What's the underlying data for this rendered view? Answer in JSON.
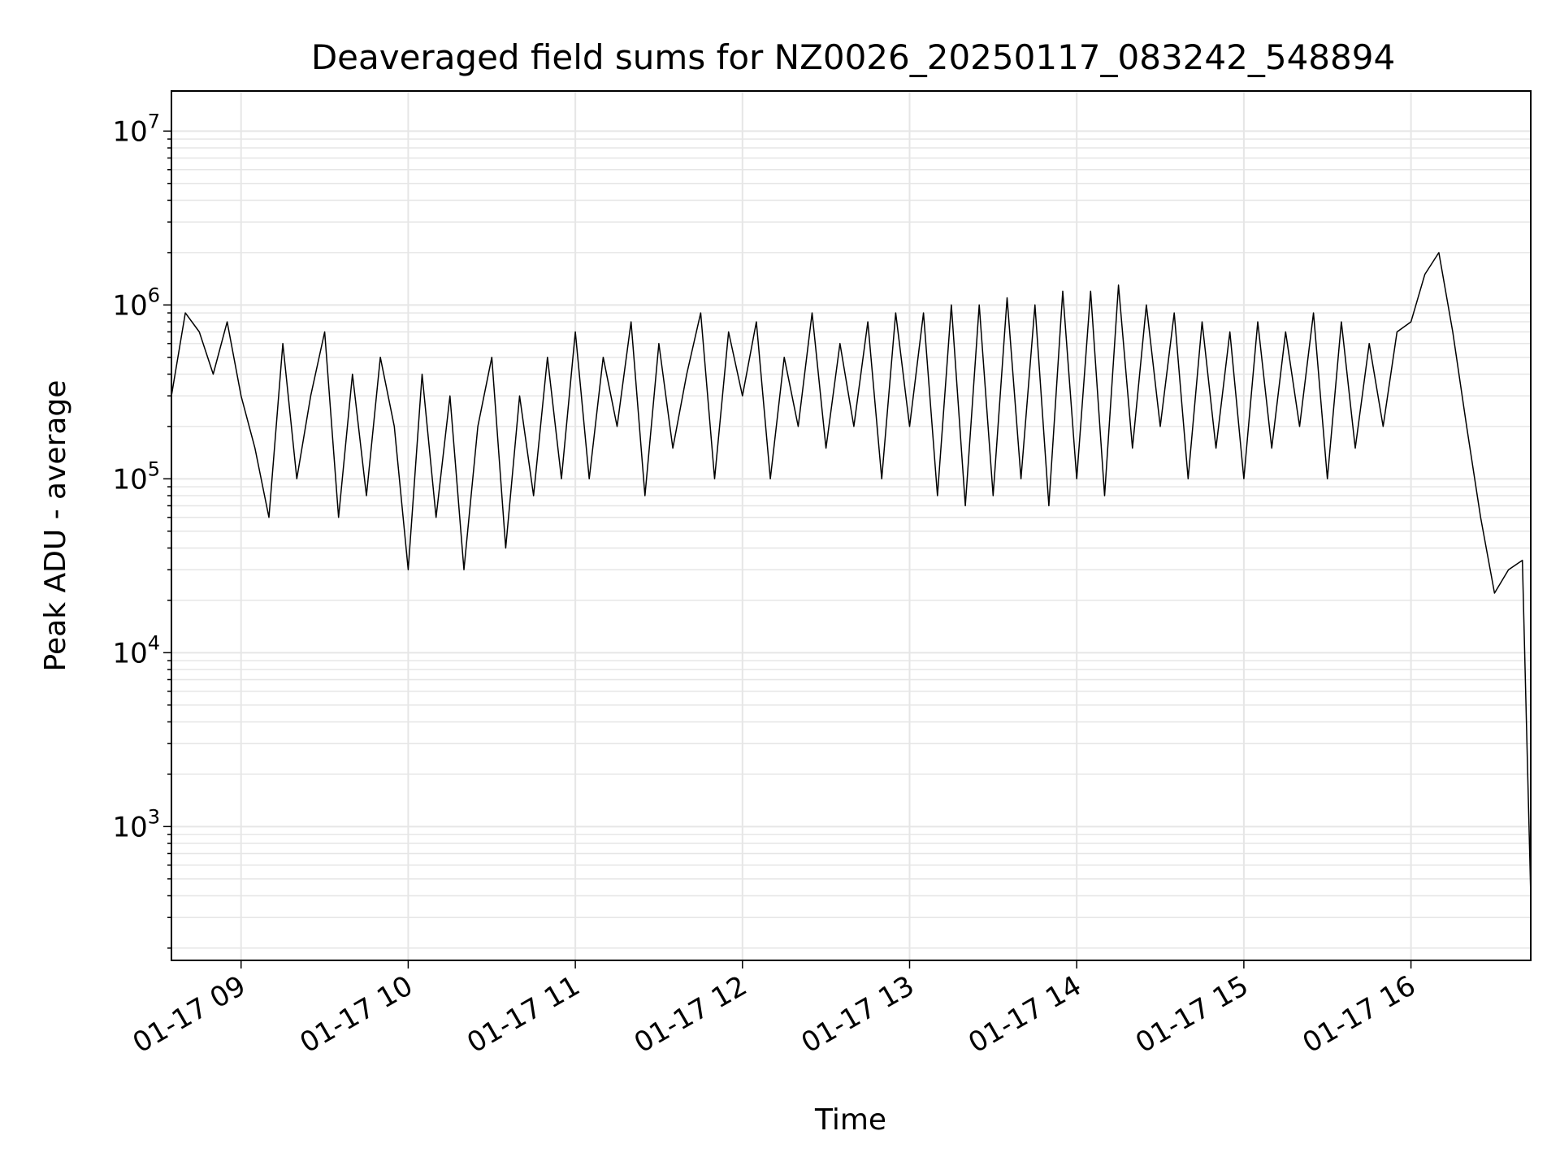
{
  "chart_data": {
    "type": "line",
    "title": "Deaveraged field sums for NZ0026_20250117_083242_548894",
    "xlabel": "Time",
    "ylabel": "Peak ADU - average",
    "yscale": "log",
    "xlim": [
      "2025-01-17 08:35",
      "2025-01-17 16:43"
    ],
    "ylim": [
      170,
      17000000
    ],
    "grid": true,
    "line_color": "#000000",
    "grid_color": "#e6e6e6",
    "x_ticks": [
      {
        "label": "01-17 09",
        "time": "2025-01-17 09:00"
      },
      {
        "label": "01-17 10",
        "time": "2025-01-17 10:00"
      },
      {
        "label": "01-17 11",
        "time": "2025-01-17 11:00"
      },
      {
        "label": "01-17 12",
        "time": "2025-01-17 12:00"
      },
      {
        "label": "01-17 13",
        "time": "2025-01-17 13:00"
      },
      {
        "label": "01-17 14",
        "time": "2025-01-17 14:00"
      },
      {
        "label": "01-17 15",
        "time": "2025-01-17 15:00"
      },
      {
        "label": "01-17 16",
        "time": "2025-01-17 16:00"
      }
    ],
    "y_ticks": [
      {
        "value": 1000,
        "base": "10",
        "exp": "3"
      },
      {
        "value": 10000,
        "base": "10",
        "exp": "4"
      },
      {
        "value": 100000,
        "base": "10",
        "exp": "5"
      },
      {
        "value": 1000000,
        "base": "10",
        "exp": "6"
      },
      {
        "value": 10000000,
        "base": "10",
        "exp": "7"
      }
    ],
    "series": [
      {
        "x": [
          "2025-01-17 08:35",
          "2025-01-17 08:40",
          "2025-01-17 08:45",
          "2025-01-17 08:50",
          "2025-01-17 08:55",
          "2025-01-17 09:00",
          "2025-01-17 09:05",
          "2025-01-17 09:10",
          "2025-01-17 09:15",
          "2025-01-17 09:20",
          "2025-01-17 09:25",
          "2025-01-17 09:30",
          "2025-01-17 09:35",
          "2025-01-17 09:40",
          "2025-01-17 09:45",
          "2025-01-17 09:50",
          "2025-01-17 09:55",
          "2025-01-17 10:00",
          "2025-01-17 10:05",
          "2025-01-17 10:10",
          "2025-01-17 10:15",
          "2025-01-17 10:20",
          "2025-01-17 10:25",
          "2025-01-17 10:30",
          "2025-01-17 10:35",
          "2025-01-17 10:40",
          "2025-01-17 10:45",
          "2025-01-17 10:50",
          "2025-01-17 10:55",
          "2025-01-17 11:00",
          "2025-01-17 11:05",
          "2025-01-17 11:10",
          "2025-01-17 11:15",
          "2025-01-17 11:20",
          "2025-01-17 11:25",
          "2025-01-17 11:30",
          "2025-01-17 11:35",
          "2025-01-17 11:40",
          "2025-01-17 11:45",
          "2025-01-17 11:50",
          "2025-01-17 11:55",
          "2025-01-17 12:00",
          "2025-01-17 12:05",
          "2025-01-17 12:10",
          "2025-01-17 12:15",
          "2025-01-17 12:20",
          "2025-01-17 12:25",
          "2025-01-17 12:30",
          "2025-01-17 12:35",
          "2025-01-17 12:40",
          "2025-01-17 12:45",
          "2025-01-17 12:50",
          "2025-01-17 12:55",
          "2025-01-17 13:00",
          "2025-01-17 13:05",
          "2025-01-17 13:10",
          "2025-01-17 13:15",
          "2025-01-17 13:20",
          "2025-01-17 13:25",
          "2025-01-17 13:30",
          "2025-01-17 13:35",
          "2025-01-17 13:40",
          "2025-01-17 13:45",
          "2025-01-17 13:50",
          "2025-01-17 13:55",
          "2025-01-17 14:00",
          "2025-01-17 14:05",
          "2025-01-17 14:10",
          "2025-01-17 14:15",
          "2025-01-17 14:20",
          "2025-01-17 14:25",
          "2025-01-17 14:30",
          "2025-01-17 14:35",
          "2025-01-17 14:40",
          "2025-01-17 14:45",
          "2025-01-17 14:50",
          "2025-01-17 14:55",
          "2025-01-17 15:00",
          "2025-01-17 15:05",
          "2025-01-17 15:10",
          "2025-01-17 15:15",
          "2025-01-17 15:20",
          "2025-01-17 15:25",
          "2025-01-17 15:30",
          "2025-01-17 15:35",
          "2025-01-17 15:40",
          "2025-01-17 15:45",
          "2025-01-17 15:50",
          "2025-01-17 15:55",
          "2025-01-17 16:00",
          "2025-01-17 16:05",
          "2025-01-17 16:10",
          "2025-01-17 16:15",
          "2025-01-17 16:20",
          "2025-01-17 16:25",
          "2025-01-17 16:30",
          "2025-01-17 16:35",
          "2025-01-17 16:40",
          "2025-01-17 16:43"
        ],
        "y": [
          300000,
          900000,
          700000,
          400000,
          800000,
          300000,
          150000,
          60000,
          600000,
          100000,
          300000,
          700000,
          60000,
          400000,
          80000,
          500000,
          200000,
          30000,
          400000,
          60000,
          300000,
          30000,
          200000,
          500000,
          40000,
          300000,
          80000,
          500000,
          100000,
          700000,
          100000,
          500000,
          200000,
          800000,
          80000,
          600000,
          150000,
          400000,
          900000,
          100000,
          700000,
          300000,
          800000,
          100000,
          500000,
          200000,
          900000,
          150000,
          600000,
          200000,
          800000,
          100000,
          900000,
          200000,
          900000,
          80000,
          1000000,
          70000,
          1000000,
          80000,
          1100000,
          100000,
          1000000,
          70000,
          1200000,
          100000,
          1200000,
          80000,
          1300000,
          150000,
          1000000,
          200000,
          900000,
          100000,
          800000,
          150000,
          700000,
          100000,
          800000,
          150000,
          700000,
          200000,
          900000,
          100000,
          800000,
          150000,
          600000,
          200000,
          700000,
          800000,
          1500000,
          2000000,
          700000,
          200000,
          60000,
          22000,
          30000,
          34000,
          400
        ]
      }
    ]
  }
}
